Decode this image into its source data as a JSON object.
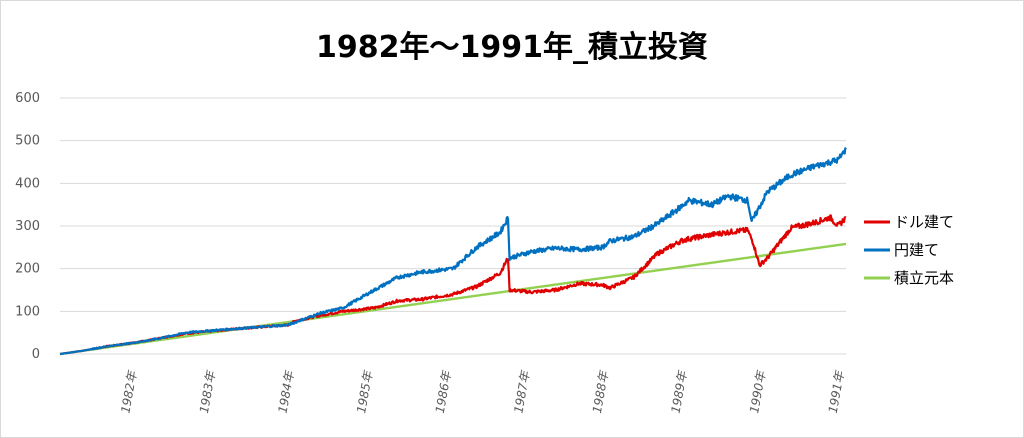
{
  "chart_data": {
    "type": "line",
    "title": "1982年～1991年_積立投資",
    "xlabel": "",
    "ylabel": "",
    "ylim": [
      0,
      600
    ],
    "yticks": [
      0,
      100,
      200,
      300,
      400,
      500,
      600
    ],
    "x_tick_labels": [
      "1982年",
      "1983年",
      "1984年",
      "1985年",
      "1986年",
      "1987年",
      "1988年",
      "1989年",
      "1990年",
      "1991年"
    ],
    "grid": "horizontal",
    "legend_position": "right",
    "series": [
      {
        "name": "ドル建て",
        "color": "#e00000",
        "x": [
          1981.0,
          1981.3,
          1981.6,
          1982.0,
          1982.3,
          1982.6,
          1983.0,
          1983.3,
          1983.6,
          1983.9,
          1984.0,
          1984.3,
          1984.6,
          1985.0,
          1985.3,
          1985.6,
          1986.0,
          1986.3,
          1986.6,
          1986.7,
          1986.72,
          1987.0,
          1987.3,
          1987.6,
          1987.9,
          1988.0,
          1988.3,
          1988.6,
          1988.9,
          1989.0,
          1989.3,
          1989.6,
          1989.75,
          1989.82,
          1989.9,
          1990.0,
          1990.3,
          1990.6,
          1990.8,
          1990.9,
          1991.0
        ],
        "y": [
          0,
          8,
          18,
          28,
          38,
          48,
          55,
          60,
          64,
          68,
          78,
          90,
          100,
          108,
          125,
          128,
          140,
          158,
          190,
          225,
          150,
          145,
          150,
          165,
          162,
          155,
          180,
          235,
          265,
          270,
          280,
          288,
          290,
          260,
          208,
          225,
          295,
          308,
          320,
          300,
          320
        ]
      },
      {
        "name": "円建て",
        "color": "#0070c0",
        "x": [
          1981.0,
          1981.3,
          1981.6,
          1982.0,
          1982.3,
          1982.6,
          1983.0,
          1983.3,
          1983.6,
          1983.9,
          1984.0,
          1984.3,
          1984.6,
          1985.0,
          1985.3,
          1985.6,
          1986.0,
          1986.3,
          1986.6,
          1986.7,
          1986.72,
          1987.0,
          1987.3,
          1987.6,
          1987.9,
          1988.0,
          1988.3,
          1988.6,
          1988.9,
          1989.0,
          1989.3,
          1989.5,
          1989.75,
          1989.8,
          1990.0,
          1990.3,
          1990.6,
          1990.9,
          1991.0
        ],
        "y": [
          0,
          8,
          18,
          28,
          38,
          50,
          56,
          60,
          64,
          68,
          75,
          95,
          108,
          150,
          180,
          192,
          200,
          250,
          285,
          320,
          225,
          240,
          248,
          245,
          250,
          265,
          275,
          305,
          345,
          360,
          350,
          370,
          360,
          310,
          380,
          420,
          440,
          455,
          480
        ]
      },
      {
        "name": "積立元本",
        "color": "#92d050",
        "x": [
          1981.0,
          1991.0
        ],
        "y": [
          0,
          258
        ]
      }
    ]
  }
}
